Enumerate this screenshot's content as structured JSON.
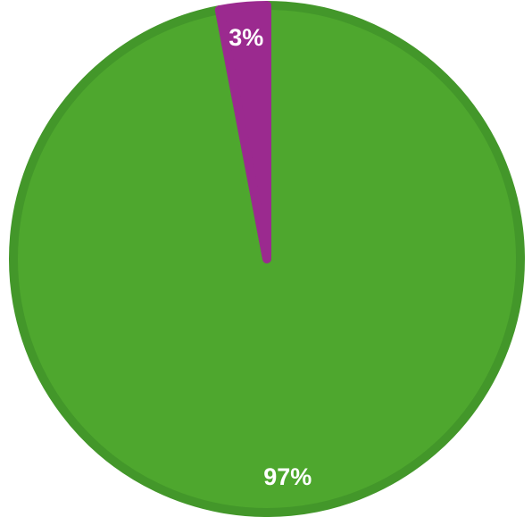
{
  "chart_data": {
    "type": "pie",
    "series": [
      {
        "values": [
          97,
          3
        ],
        "value_labels": [
          "97%",
          "3%"
        ],
        "colors": [
          "#4ea72e",
          "#9b2a8f"
        ]
      }
    ],
    "start_angle": "top",
    "direction": "clockwise"
  }
}
